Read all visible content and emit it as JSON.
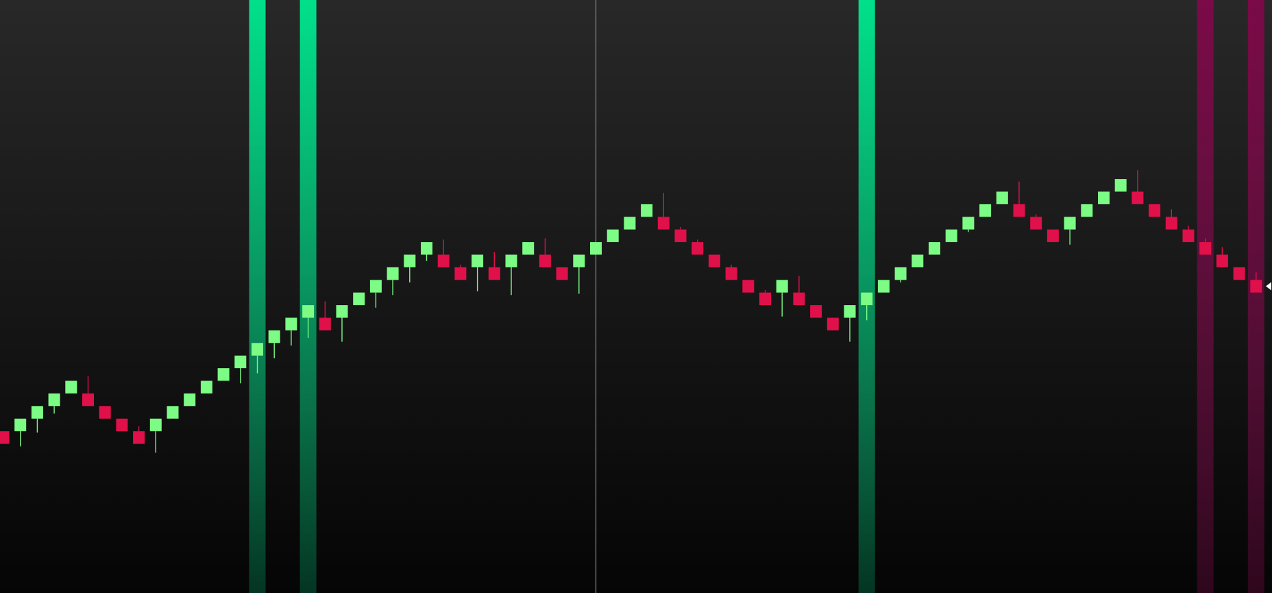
{
  "chart_data": {
    "type": "candlestick",
    "chart_style": "renko",
    "title": "",
    "xlabel": "",
    "ylabel": "",
    "y_range": [
      0,
      45
    ],
    "brick_size": 1,
    "grid": false,
    "legend": "none",
    "colors": {
      "background_top": "#282828",
      "background_bottom": "#050505",
      "up": "#7cfc84",
      "down": "#e0104a",
      "crosshair": "#8a8a8a",
      "price_marker": "#ffffff",
      "bullish_band": "#00e08a",
      "bearish_band": "#7a0a48"
    },
    "bricks": [
      {
        "i": 0,
        "dir": "down",
        "open": 12,
        "close": 11,
        "wick_low": null,
        "wick_high": null
      },
      {
        "i": 1,
        "dir": "up",
        "open": 12,
        "close": 13,
        "wick_low": 10.8,
        "wick_high": null
      },
      {
        "i": 2,
        "dir": "up",
        "open": 13,
        "close": 14,
        "wick_low": 11.9,
        "wick_high": null
      },
      {
        "i": 3,
        "dir": "up",
        "open": 14,
        "close": 15,
        "wick_low": 13.4,
        "wick_high": null
      },
      {
        "i": 4,
        "dir": "up",
        "open": 15,
        "close": 16,
        "wick_low": null,
        "wick_high": null
      },
      {
        "i": 5,
        "dir": "down",
        "open": 15,
        "close": 14,
        "wick_low": null,
        "wick_high": 16.4
      },
      {
        "i": 6,
        "dir": "down",
        "open": 14,
        "close": 13,
        "wick_low": null,
        "wick_high": null
      },
      {
        "i": 7,
        "dir": "down",
        "open": 13,
        "close": 12,
        "wick_low": null,
        "wick_high": null
      },
      {
        "i": 8,
        "dir": "down",
        "open": 12,
        "close": 11,
        "wick_low": null,
        "wick_high": 12.4
      },
      {
        "i": 9,
        "dir": "up",
        "open": 12,
        "close": 13,
        "wick_low": 10.3,
        "wick_high": null
      },
      {
        "i": 10,
        "dir": "up",
        "open": 13,
        "close": 14,
        "wick_low": null,
        "wick_high": null
      },
      {
        "i": 11,
        "dir": "up",
        "open": 14,
        "close": 15,
        "wick_low": null,
        "wick_high": null
      },
      {
        "i": 12,
        "dir": "up",
        "open": 15,
        "close": 16,
        "wick_low": null,
        "wick_high": null
      },
      {
        "i": 13,
        "dir": "up",
        "open": 16,
        "close": 17,
        "wick_low": null,
        "wick_high": null
      },
      {
        "i": 14,
        "dir": "up",
        "open": 17,
        "close": 18,
        "wick_low": 15.8,
        "wick_high": null
      },
      {
        "i": 15,
        "dir": "up",
        "open": 18,
        "close": 19,
        "wick_low": 16.6,
        "wick_high": null
      },
      {
        "i": 16,
        "dir": "up",
        "open": 19,
        "close": 20,
        "wick_low": 17.8,
        "wick_high": null
      },
      {
        "i": 17,
        "dir": "up",
        "open": 20,
        "close": 21,
        "wick_low": 18.8,
        "wick_high": null
      },
      {
        "i": 18,
        "dir": "up",
        "open": 21,
        "close": 22,
        "wick_low": 19.4,
        "wick_high": null
      },
      {
        "i": 19,
        "dir": "down",
        "open": 21,
        "close": 20,
        "wick_low": null,
        "wick_high": 22.3
      },
      {
        "i": 20,
        "dir": "up",
        "open": 21,
        "close": 22,
        "wick_low": 19.1,
        "wick_high": null
      },
      {
        "i": 21,
        "dir": "up",
        "open": 22,
        "close": 23,
        "wick_low": null,
        "wick_high": null
      },
      {
        "i": 22,
        "dir": "up",
        "open": 23,
        "close": 24,
        "wick_low": 21.8,
        "wick_high": null
      },
      {
        "i": 23,
        "dir": "up",
        "open": 24,
        "close": 25,
        "wick_low": 22.8,
        "wick_high": null
      },
      {
        "i": 24,
        "dir": "up",
        "open": 25,
        "close": 26,
        "wick_low": 23.8,
        "wick_high": null
      },
      {
        "i": 25,
        "dir": "up",
        "open": 26,
        "close": 27,
        "wick_low": 25.5,
        "wick_high": null
      },
      {
        "i": 26,
        "dir": "down",
        "open": 26,
        "close": 25,
        "wick_low": null,
        "wick_high": 27.2
      },
      {
        "i": 27,
        "dir": "down",
        "open": 25,
        "close": 24,
        "wick_low": null,
        "wick_high": 25.2
      },
      {
        "i": 28,
        "dir": "up",
        "open": 25,
        "close": 26,
        "wick_low": 23.1,
        "wick_high": null
      },
      {
        "i": 29,
        "dir": "down",
        "open": 25,
        "close": 24,
        "wick_low": null,
        "wick_high": 26.2
      },
      {
        "i": 30,
        "dir": "up",
        "open": 25,
        "close": 26,
        "wick_low": 22.8,
        "wick_high": null
      },
      {
        "i": 31,
        "dir": "up",
        "open": 26,
        "close": 27,
        "wick_low": null,
        "wick_high": null
      },
      {
        "i": 32,
        "dir": "down",
        "open": 26,
        "close": 25,
        "wick_low": null,
        "wick_high": 27.3
      },
      {
        "i": 33,
        "dir": "down",
        "open": 25,
        "close": 24,
        "wick_low": null,
        "wick_high": null
      },
      {
        "i": 34,
        "dir": "up",
        "open": 25,
        "close": 26,
        "wick_low": 22.9,
        "wick_high": null
      },
      {
        "i": 35,
        "dir": "up",
        "open": 26,
        "close": 27,
        "wick_low": null,
        "wick_high": null
      },
      {
        "i": 36,
        "dir": "up",
        "open": 27,
        "close": 28,
        "wick_low": null,
        "wick_high": null
      },
      {
        "i": 37,
        "dir": "up",
        "open": 28,
        "close": 29,
        "wick_low": null,
        "wick_high": null
      },
      {
        "i": 38,
        "dir": "up",
        "open": 29,
        "close": 30,
        "wick_low": null,
        "wick_high": null
      },
      {
        "i": 39,
        "dir": "down",
        "open": 29,
        "close": 28,
        "wick_low": null,
        "wick_high": 30.9
      },
      {
        "i": 40,
        "dir": "down",
        "open": 28,
        "close": 27,
        "wick_low": null,
        "wick_high": 28.2
      },
      {
        "i": 41,
        "dir": "down",
        "open": 27,
        "close": 26,
        "wick_low": null,
        "wick_high": 27.2
      },
      {
        "i": 42,
        "dir": "down",
        "open": 26,
        "close": 25,
        "wick_low": null,
        "wick_high": null
      },
      {
        "i": 43,
        "dir": "down",
        "open": 25,
        "close": 24,
        "wick_low": null,
        "wick_high": 25.2
      },
      {
        "i": 44,
        "dir": "down",
        "open": 24,
        "close": 23,
        "wick_low": null,
        "wick_high": null
      },
      {
        "i": 45,
        "dir": "down",
        "open": 23,
        "close": 22,
        "wick_low": null,
        "wick_high": 23.2
      },
      {
        "i": 46,
        "dir": "up",
        "open": 23,
        "close": 24,
        "wick_low": 21.1,
        "wick_high": null
      },
      {
        "i": 47,
        "dir": "down",
        "open": 23,
        "close": 22,
        "wick_low": null,
        "wick_high": 24.3
      },
      {
        "i": 48,
        "dir": "down",
        "open": 22,
        "close": 21,
        "wick_low": null,
        "wick_high": null
      },
      {
        "i": 49,
        "dir": "down",
        "open": 21,
        "close": 20,
        "wick_low": null,
        "wick_high": null
      },
      {
        "i": 50,
        "dir": "up",
        "open": 21,
        "close": 22,
        "wick_low": 19.1,
        "wick_high": null
      },
      {
        "i": 51,
        "dir": "up",
        "open": 22,
        "close": 23,
        "wick_low": 20.8,
        "wick_high": null
      },
      {
        "i": 52,
        "dir": "up",
        "open": 23,
        "close": 24,
        "wick_low": null,
        "wick_high": null
      },
      {
        "i": 53,
        "dir": "up",
        "open": 24,
        "close": 25,
        "wick_low": 23.8,
        "wick_high": null
      },
      {
        "i": 54,
        "dir": "up",
        "open": 25,
        "close": 26,
        "wick_low": null,
        "wick_high": null
      },
      {
        "i": 55,
        "dir": "up",
        "open": 26,
        "close": 27,
        "wick_low": null,
        "wick_high": null
      },
      {
        "i": 56,
        "dir": "up",
        "open": 27,
        "close": 28,
        "wick_low": null,
        "wick_high": null
      },
      {
        "i": 57,
        "dir": "up",
        "open": 28,
        "close": 29,
        "wick_low": 27.8,
        "wick_high": null
      },
      {
        "i": 58,
        "dir": "up",
        "open": 29,
        "close": 30,
        "wick_low": null,
        "wick_high": null
      },
      {
        "i": 59,
        "dir": "up",
        "open": 30,
        "close": 31,
        "wick_low": null,
        "wick_high": null
      },
      {
        "i": 60,
        "dir": "down",
        "open": 30,
        "close": 29,
        "wick_low": null,
        "wick_high": 31.8
      },
      {
        "i": 61,
        "dir": "down",
        "open": 29,
        "close": 28,
        "wick_low": null,
        "wick_high": 29.2
      },
      {
        "i": 62,
        "dir": "down",
        "open": 28,
        "close": 27,
        "wick_low": null,
        "wick_high": null
      },
      {
        "i": 63,
        "dir": "up",
        "open": 28,
        "close": 29,
        "wick_low": 26.8,
        "wick_high": null
      },
      {
        "i": 64,
        "dir": "up",
        "open": 29,
        "close": 30,
        "wick_low": null,
        "wick_high": null
      },
      {
        "i": 65,
        "dir": "up",
        "open": 30,
        "close": 31,
        "wick_low": null,
        "wick_high": null
      },
      {
        "i": 66,
        "dir": "up",
        "open": 31,
        "close": 32,
        "wick_low": null,
        "wick_high": null
      },
      {
        "i": 67,
        "dir": "down",
        "open": 31,
        "close": 30,
        "wick_low": null,
        "wick_high": 32.7
      },
      {
        "i": 68,
        "dir": "down",
        "open": 30,
        "close": 29,
        "wick_low": null,
        "wick_high": null
      },
      {
        "i": 69,
        "dir": "down",
        "open": 29,
        "close": 28,
        "wick_low": null,
        "wick_high": 29.6
      },
      {
        "i": 70,
        "dir": "down",
        "open": 28,
        "close": 27,
        "wick_low": null,
        "wick_high": 28.3
      },
      {
        "i": 71,
        "dir": "down",
        "open": 27,
        "close": 26,
        "wick_low": null,
        "wick_high": 27.3
      },
      {
        "i": 72,
        "dir": "down",
        "open": 26,
        "close": 25,
        "wick_low": null,
        "wick_high": 26.6
      },
      {
        "i": 73,
        "dir": "down",
        "open": 25,
        "close": 24,
        "wick_low": null,
        "wick_high": null
      },
      {
        "i": 74,
        "dir": "down",
        "open": 24,
        "close": 23,
        "wick_low": null,
        "wick_high": 24.6
      }
    ],
    "signal_bands": [
      {
        "index": 15,
        "type": "bullish"
      },
      {
        "index": 18,
        "type": "bullish"
      },
      {
        "index": 51,
        "type": "bullish"
      },
      {
        "index": 71,
        "type": "bearish"
      },
      {
        "index": 74,
        "type": "bearish"
      }
    ],
    "crosshair_index": 35,
    "last_price": 23.5
  }
}
